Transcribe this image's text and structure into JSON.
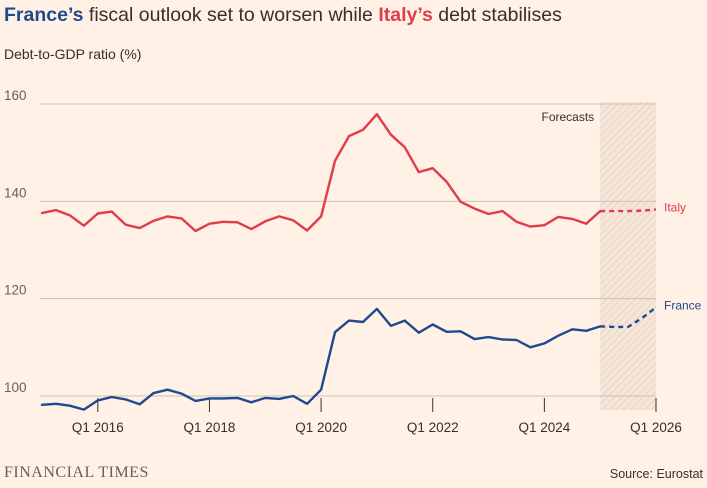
{
  "title": {
    "part1": "France’s",
    "part2": " fiscal outlook set to worsen while ",
    "part3": "Italy’s",
    "part4": " debt stabilises"
  },
  "footer": {
    "brand": "FINANCIAL TIMES",
    "source": "Source: Eurostat"
  },
  "colors": {
    "france": "#1f4a8c",
    "italy": "#e03c4a",
    "background": "#fff1e5",
    "grid": "#ccc1b7"
  },
  "chart_data": {
    "type": "line",
    "title": "France’s fiscal outlook set to worsen while Italy’s debt stabilises",
    "ylabel": "Debt-to-GDP ratio (%)",
    "xlabel": "",
    "ylim": [
      96,
      162
    ],
    "yticks": [
      100,
      120,
      140,
      160
    ],
    "x_start_quarter": "Q1 2015",
    "xticks": [
      {
        "label": "Q1 2016",
        "index": 4
      },
      {
        "label": "Q1 2018",
        "index": 12
      },
      {
        "label": "Q1 2020",
        "index": 20
      },
      {
        "label": "Q1 2022",
        "index": 28
      },
      {
        "label": "Q1 2024",
        "index": 36
      },
      {
        "label": "Q1 2026",
        "index": 44
      }
    ],
    "forecast_start_index": 40,
    "forecast_label": "Forecasts",
    "series": [
      {
        "name": "Italy",
        "color": "#e03c4a",
        "values": [
          137.6,
          138.2,
          137.1,
          135.0,
          137.5,
          137.9,
          135.2,
          134.5,
          136.0,
          136.9,
          136.5,
          133.9,
          135.4,
          135.8,
          135.7,
          134.3,
          135.9,
          136.9,
          136.1,
          134.0,
          136.9,
          148.3,
          153.4,
          154.7,
          157.9,
          153.7,
          151.1,
          146.0,
          146.8,
          144.0,
          139.9,
          138.5,
          137.4,
          138.0,
          135.8,
          134.8,
          135.1,
          136.8,
          136.4,
          135.4,
          138.0
        ],
        "forecast": [
          138.0,
          138.0,
          138.0,
          138.1,
          138.3
        ]
      },
      {
        "name": "France",
        "color": "#1f4a8c",
        "values": [
          98.2,
          98.4,
          98.0,
          97.2,
          99.1,
          99.8,
          99.3,
          98.3,
          100.6,
          101.3,
          100.5,
          99.0,
          99.5,
          99.5,
          99.6,
          98.7,
          99.6,
          99.4,
          100.0,
          98.4,
          101.3,
          113.1,
          115.5,
          115.2,
          117.9,
          114.4,
          115.5,
          113.0,
          114.7,
          113.2,
          113.3,
          111.7,
          112.1,
          111.6,
          111.5,
          110.0,
          110.8,
          112.4,
          113.7,
          113.4,
          114.3
        ],
        "forecast": [
          114.3,
          114.2,
          114.2,
          116.0,
          118.2
        ]
      }
    ]
  }
}
